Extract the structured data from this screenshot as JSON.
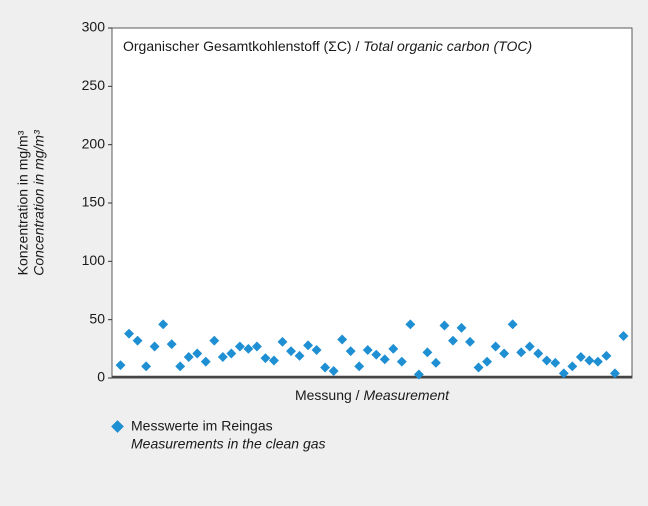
{
  "chart_data": {
    "type": "scatter",
    "title": "Organischer Gesamtkohlenstoff (ΣC) /",
    "title_italic": "Total organic carbon (TOC)",
    "y_label": "Konzentration in mg/m³",
    "y_label_italic": "Concentration in mg/m³",
    "x_label": "Messung /",
    "x_label_italic": "Measurement",
    "series": [
      {
        "name": "Messwerte im Reingas",
        "name_italic": "Measurements in the clean gas",
        "color": "#1f8fd3",
        "values": [
          11,
          38,
          32,
          10,
          27,
          46,
          29,
          10,
          18,
          21,
          14,
          32,
          18,
          21,
          27,
          25,
          27,
          17,
          15,
          31,
          23,
          19,
          28,
          24,
          9,
          6,
          33,
          23,
          10,
          24,
          20,
          16,
          25,
          14,
          46,
          3,
          22,
          13,
          45,
          32,
          43,
          31,
          9,
          14,
          27,
          21,
          46,
          22,
          27,
          21,
          15,
          13,
          4,
          10,
          18,
          15,
          14,
          19,
          4,
          36
        ]
      }
    ],
    "ylim": [
      0,
      300
    ],
    "yticks": [
      0,
      50,
      100,
      150,
      200,
      250,
      300
    ]
  }
}
